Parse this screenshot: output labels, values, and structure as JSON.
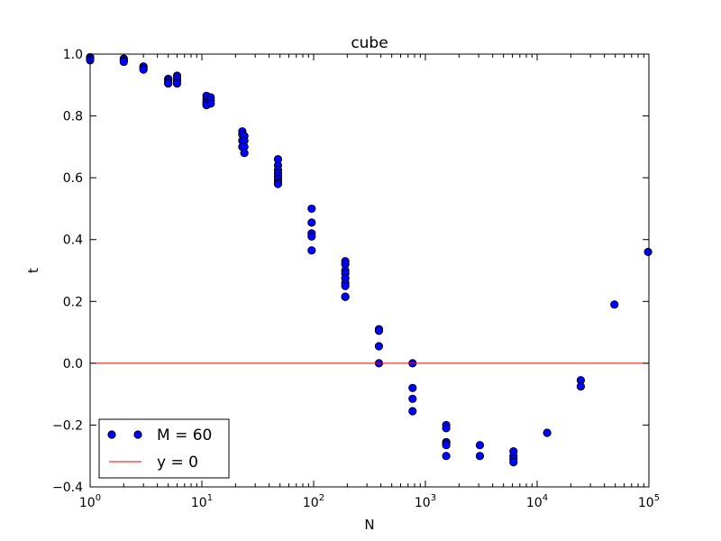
{
  "chart_data": {
    "type": "scatter",
    "title": "cube",
    "xlabel": "N",
    "ylabel": "t",
    "xscale": "log",
    "xlim": [
      1,
      100000
    ],
    "ylim": [
      -0.4,
      1.0
    ],
    "grid": false,
    "legend_position": "lower-left",
    "x_ticks": [
      {
        "value": 1,
        "base": "10",
        "exp": "0"
      },
      {
        "value": 10,
        "base": "10",
        "exp": "1"
      },
      {
        "value": 100,
        "base": "10",
        "exp": "2"
      },
      {
        "value": 1000,
        "base": "10",
        "exp": "3"
      },
      {
        "value": 10000,
        "base": "10",
        "exp": "4"
      },
      {
        "value": 100000,
        "base": "10",
        "exp": "5"
      }
    ],
    "y_ticks": [
      {
        "value": -0.4,
        "label": "−0.4"
      },
      {
        "value": -0.2,
        "label": "−0.2"
      },
      {
        "value": 0.0,
        "label": "0.0"
      },
      {
        "value": 0.2,
        "label": "0.2"
      },
      {
        "value": 0.4,
        "label": "0.4"
      },
      {
        "value": 0.6,
        "label": "0.6"
      },
      {
        "value": 0.8,
        "label": "0.8"
      },
      {
        "value": 1.0,
        "label": "1.0"
      }
    ],
    "series": [
      {
        "name": "M = 60",
        "kind": "scatter",
        "color": "#0000ff",
        "edge_color": "#000000",
        "x": [
          1,
          1,
          1,
          2,
          2,
          2,
          3,
          3,
          3,
          5,
          5,
          5,
          5,
          6,
          6,
          6,
          6,
          11,
          11,
          11,
          11,
          11,
          12,
          12,
          12,
          23,
          23,
          23,
          23,
          24,
          24,
          24,
          24,
          48,
          48,
          48,
          48,
          48,
          48,
          48,
          48,
          96,
          96,
          96,
          96,
          96,
          192,
          192,
          192,
          192,
          192,
          192,
          192,
          192,
          192,
          384,
          384,
          384,
          384,
          768,
          768,
          768,
          768,
          1536,
          1536,
          1536,
          1536,
          1536,
          1536,
          3072,
          3072,
          6144,
          6144,
          6144,
          6144,
          12288,
          24576,
          24576,
          49152,
          98304
        ],
        "y": [
          0.99,
          0.985,
          0.98,
          0.985,
          0.98,
          0.975,
          0.96,
          0.955,
          0.95,
          0.92,
          0.915,
          0.91,
          0.905,
          0.93,
          0.925,
          0.915,
          0.905,
          0.865,
          0.855,
          0.845,
          0.84,
          0.835,
          0.86,
          0.85,
          0.84,
          0.75,
          0.74,
          0.72,
          0.7,
          0.735,
          0.72,
          0.7,
          0.68,
          0.66,
          0.64,
          0.625,
          0.615,
          0.605,
          0.595,
          0.585,
          0.58,
          0.5,
          0.455,
          0.42,
          0.41,
          0.365,
          0.33,
          0.32,
          0.3,
          0.29,
          0.275,
          0.26,
          0.25,
          0.215,
          0.215,
          0.11,
          0.105,
          0.055,
          0.0,
          0.0,
          -0.08,
          -0.115,
          -0.155,
          -0.2,
          -0.21,
          -0.255,
          -0.26,
          -0.265,
          -0.3,
          -0.265,
          -0.3,
          -0.285,
          -0.3,
          -0.31,
          -0.32,
          -0.225,
          -0.055,
          -0.075,
          0.19,
          0.36
        ]
      },
      {
        "name": "y = 0",
        "kind": "line",
        "color": "#ff0000",
        "x": [
          1,
          100000
        ],
        "y": [
          0,
          0
        ]
      }
    ]
  }
}
